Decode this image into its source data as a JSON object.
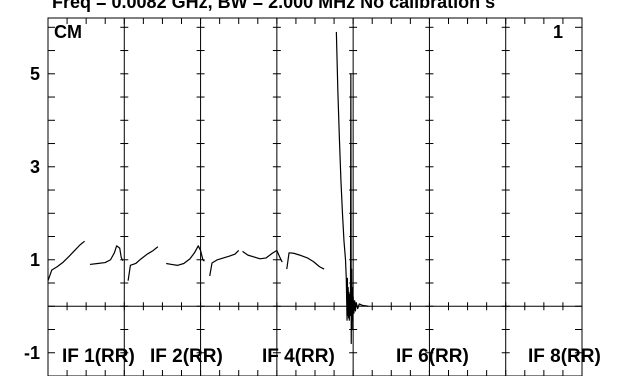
{
  "header_text": "Freq = 0.0082 GHz, BW = 2.000 MHz No calibration s",
  "chart_data": {
    "type": "line",
    "title": "",
    "xlabel": "",
    "ylabel": "",
    "unit_label": "CM",
    "channel_label": "1",
    "ylim": [
      -1.5,
      6.2
    ],
    "y_ticks": [
      5,
      3,
      1,
      -1
    ],
    "y_minor_step": 0.5,
    "grid": true,
    "x_divisions": 7,
    "x_minor_per_division": 2,
    "baseline": 0,
    "segment_labels": [
      "IF 1(RR)",
      "IF 2(RR)",
      "IF 4(RR)",
      "IF 6(RR)",
      "IF 8(RR)"
    ],
    "series": [
      {
        "points": [
          [
            0.0,
            0.55
          ],
          [
            0.05,
            0.78
          ],
          [
            0.12,
            0.85
          ],
          [
            0.2,
            0.95
          ],
          [
            0.28,
            1.08
          ],
          [
            0.35,
            1.2
          ],
          [
            0.42,
            1.32
          ],
          [
            0.48,
            1.4
          ]
        ]
      },
      {
        "points": [
          [
            0.55,
            0.9
          ],
          [
            0.65,
            0.92
          ],
          [
            0.75,
            0.94
          ],
          [
            0.82,
            1.0
          ],
          [
            0.87,
            1.15
          ],
          [
            0.9,
            1.3
          ],
          [
            0.94,
            1.25
          ],
          [
            0.96,
            1.05
          ],
          [
            0.98,
            0.98
          ]
        ]
      },
      {
        "points": [
          [
            1.05,
            0.55
          ],
          [
            1.08,
            0.88
          ],
          [
            1.15,
            0.92
          ],
          [
            1.22,
            1.02
          ],
          [
            1.3,
            1.12
          ],
          [
            1.38,
            1.2
          ],
          [
            1.44,
            1.28
          ]
        ]
      },
      {
        "points": [
          [
            1.55,
            0.92
          ],
          [
            1.62,
            0.9
          ],
          [
            1.7,
            0.88
          ],
          [
            1.78,
            0.92
          ],
          [
            1.86,
            1.02
          ],
          [
            1.92,
            1.15
          ],
          [
            1.97,
            1.3
          ],
          [
            2.0,
            1.2
          ],
          [
            2.03,
            1.0
          ],
          [
            2.05,
            0.97
          ]
        ]
      },
      {
        "points": [
          [
            2.12,
            0.65
          ],
          [
            2.15,
            0.93
          ],
          [
            2.22,
            1.0
          ],
          [
            2.3,
            1.04
          ],
          [
            2.38,
            1.08
          ],
          [
            2.45,
            1.12
          ],
          [
            2.5,
            1.2
          ]
        ]
      },
      {
        "points": [
          [
            2.55,
            1.18
          ],
          [
            2.62,
            1.1
          ],
          [
            2.7,
            1.06
          ],
          [
            2.78,
            1.02
          ],
          [
            2.86,
            1.04
          ],
          [
            2.94,
            1.14
          ],
          [
            3.0,
            1.2
          ],
          [
            3.04,
            1.05
          ],
          [
            3.07,
            0.95
          ]
        ]
      },
      {
        "points": [
          [
            3.13,
            0.8
          ],
          [
            3.16,
            1.15
          ],
          [
            3.22,
            1.14
          ],
          [
            3.3,
            1.1
          ],
          [
            3.4,
            1.04
          ],
          [
            3.48,
            0.96
          ],
          [
            3.56,
            0.85
          ],
          [
            3.62,
            0.8
          ]
        ]
      },
      {
        "points": [
          [
            3.78,
            5.9
          ],
          [
            3.8,
            4.6
          ],
          [
            3.82,
            3.6
          ],
          [
            3.84,
            2.7
          ],
          [
            3.86,
            2.0
          ],
          [
            3.88,
            1.4
          ],
          [
            3.9,
            1.0
          ],
          [
            3.91,
            0.6
          ],
          [
            3.92,
            -0.3
          ],
          [
            3.925,
            0.6
          ],
          [
            3.93,
            -0.2
          ],
          [
            3.935,
            0.4
          ],
          [
            3.94,
            -0.25
          ],
          [
            3.945,
            0.3
          ],
          [
            3.95,
            -0.3
          ],
          [
            3.955,
            0.25
          ],
          [
            3.96,
            -0.2
          ],
          [
            3.965,
            -0.2
          ],
          [
            3.97,
            5.0
          ],
          [
            3.975,
            -0.8
          ],
          [
            3.98,
            0.8
          ],
          [
            3.985,
            -0.5
          ],
          [
            3.99,
            0.4
          ],
          [
            3.995,
            -0.3
          ],
          [
            4.0,
            0.2
          ],
          [
            4.01,
            -0.15
          ],
          [
            4.02,
            0.12
          ],
          [
            4.03,
            -0.1
          ],
          [
            4.04,
            0.08
          ],
          [
            4.06,
            -0.05
          ],
          [
            4.08,
            0.05
          ],
          [
            4.12,
            0.02
          ],
          [
            4.2,
            0.0
          ]
        ]
      }
    ]
  }
}
